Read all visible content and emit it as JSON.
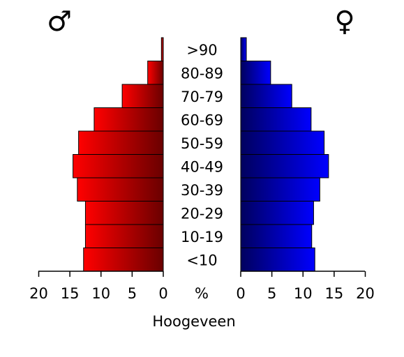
{
  "chart_data": {
    "type": "bar",
    "title": "Hoogeveen",
    "unit_label": "%",
    "male_symbol": "♂",
    "female_symbol": "♀",
    "categories": [
      "<10",
      "10-19",
      "20-29",
      "30-39",
      "40-49",
      "50-59",
      "60-69",
      "70-79",
      "80-89",
      ">90"
    ],
    "series": [
      {
        "values": [
          12.8,
          12.5,
          12.5,
          13.8,
          14.5,
          13.6,
          11.1,
          6.6,
          2.5,
          0.3
        ],
        "color_dark": "#6a0000",
        "color_light": "#ff0000"
      },
      {
        "values": [
          11.9,
          11.4,
          11.7,
          12.7,
          14.1,
          13.4,
          11.3,
          8.2,
          4.8,
          0.9
        ],
        "color_dark": "#00005e",
        "color_light": "#0000ff"
      }
    ],
    "xlim": [
      0,
      20
    ],
    "ticks": [
      "0",
      "5",
      "10",
      "15",
      "20"
    ],
    "male_ticks": [
      "20",
      "15",
      "10",
      "5",
      "0"
    ]
  }
}
